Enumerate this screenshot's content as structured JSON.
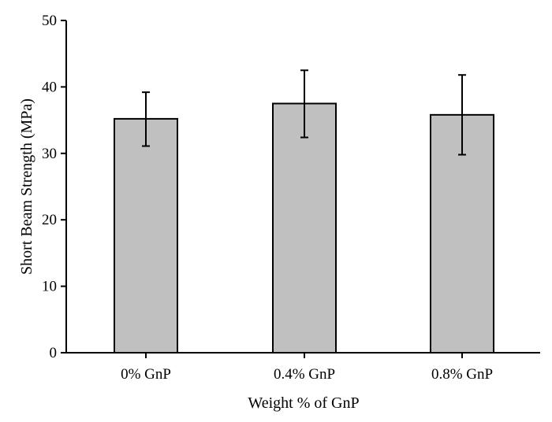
{
  "chart_data": {
    "type": "bar",
    "title": "",
    "xlabel": "Weight % of GnP",
    "ylabel": "Short Beam Strength (MPa)",
    "categories": [
      "0% GnP",
      "0.4% GnP",
      "0.8% GnP"
    ],
    "values": [
      35.2,
      37.5,
      35.8
    ],
    "error_high": [
      39.2,
      42.5,
      41.8
    ],
    "error_low": [
      31.1,
      32.4,
      29.8
    ],
    "ylim": [
      0,
      50
    ],
    "yticks": [
      0,
      10,
      20,
      30,
      40,
      50
    ],
    "ytick_labels": [
      "0",
      "10",
      "20",
      "30",
      "40",
      "50"
    ],
    "grid": false,
    "colors": {
      "bar_fill": "#c0c0c0",
      "bar_stroke": "#000000",
      "axis": "#000000",
      "error_bar": "#000000"
    }
  }
}
